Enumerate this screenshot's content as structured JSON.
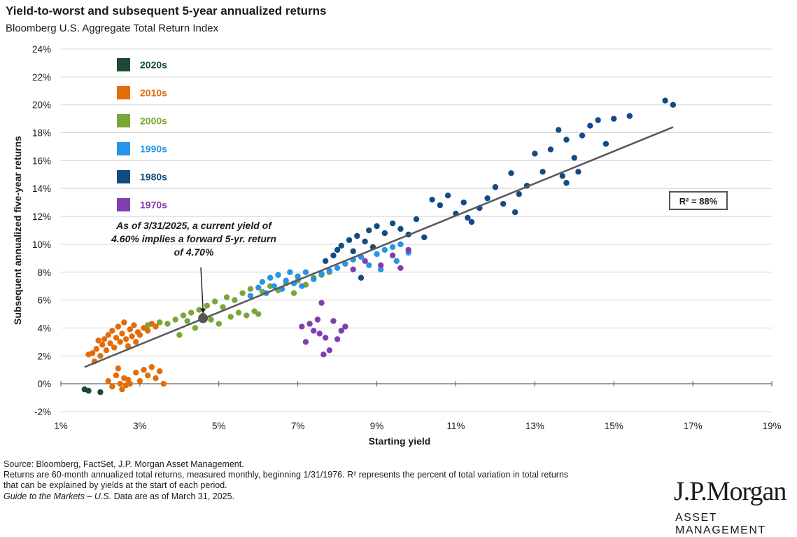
{
  "chart_data": {
    "type": "scatter",
    "title": "Yield-to-worst and subsequent 5-year annualized returns",
    "subtitle": "Bloomberg U.S. Aggregate Total Return Index",
    "xlabel": "Starting yield",
    "ylabel": "Subsequent annualized five-year returns",
    "xlim": [
      1,
      19
    ],
    "ylim": [
      -2,
      24
    ],
    "x_ticks": [
      "1%",
      "3%",
      "5%",
      "7%",
      "9%",
      "11%",
      "13%",
      "15%",
      "17%",
      "19%"
    ],
    "y_ticks": [
      "-2%",
      "0%",
      "2%",
      "4%",
      "6%",
      "8%",
      "10%",
      "12%",
      "14%",
      "16%",
      "18%",
      "20%",
      "22%",
      "24%"
    ],
    "grid": "horizontal",
    "legend_position": "top-left",
    "trendline": {
      "x": [
        1.6,
        16.5
      ],
      "y": [
        1.2,
        18.4
      ]
    },
    "r_squared_label": "R² = 88%",
    "annotation": {
      "lines": [
        "As of 3/31/2025, a current yield of",
        "4.60% implies a forward 5-yr. return",
        "of 4.70%"
      ],
      "point": {
        "x": 4.6,
        "y": 4.7
      }
    },
    "series": [
      {
        "name": "2020s",
        "color": "#1d4a33",
        "points": [
          [
            1.6,
            -0.4
          ],
          [
            1.7,
            -0.5
          ],
          [
            2.0,
            -0.6
          ]
        ]
      },
      {
        "name": "2010s",
        "color": "#e36c0a",
        "points": [
          [
            1.7,
            2.1
          ],
          [
            1.8,
            2.2
          ],
          [
            1.85,
            1.6
          ],
          [
            1.9,
            2.5
          ],
          [
            1.95,
            3.1
          ],
          [
            2.0,
            2.0
          ],
          [
            2.05,
            2.8
          ],
          [
            2.1,
            3.2
          ],
          [
            2.15,
            2.4
          ],
          [
            2.2,
            3.5
          ],
          [
            2.25,
            2.9
          ],
          [
            2.3,
            3.8
          ],
          [
            2.35,
            2.6
          ],
          [
            2.4,
            3.3
          ],
          [
            2.45,
            4.1
          ],
          [
            2.5,
            3.0
          ],
          [
            2.55,
            3.6
          ],
          [
            2.6,
            4.4
          ],
          [
            2.65,
            3.2
          ],
          [
            2.7,
            2.7
          ],
          [
            2.75,
            3.9
          ],
          [
            2.8,
            3.4
          ],
          [
            2.85,
            4.2
          ],
          [
            2.9,
            3.0
          ],
          [
            2.95,
            3.7
          ],
          [
            3.0,
            3.5
          ],
          [
            3.1,
            4.0
          ],
          [
            3.2,
            3.8
          ],
          [
            3.3,
            4.3
          ],
          [
            3.4,
            4.1
          ],
          [
            3.5,
            4.4
          ],
          [
            2.2,
            0.2
          ],
          [
            2.3,
            -0.2
          ],
          [
            2.4,
            0.6
          ],
          [
            2.45,
            1.1
          ],
          [
            2.5,
            0.0
          ],
          [
            2.55,
            -0.4
          ],
          [
            2.6,
            0.4
          ],
          [
            2.65,
            -0.1
          ],
          [
            2.7,
            0.3
          ],
          [
            2.75,
            0.0
          ],
          [
            2.9,
            0.8
          ],
          [
            3.0,
            0.2
          ],
          [
            3.1,
            1.0
          ],
          [
            3.2,
            0.6
          ],
          [
            3.3,
            1.2
          ],
          [
            3.4,
            0.4
          ],
          [
            3.5,
            0.9
          ],
          [
            3.6,
            0.0
          ]
        ]
      },
      {
        "name": "2000s",
        "color": "#7aa638",
        "points": [
          [
            3.2,
            4.2
          ],
          [
            3.5,
            4.4
          ],
          [
            3.7,
            4.3
          ],
          [
            3.9,
            4.6
          ],
          [
            4.0,
            3.5
          ],
          [
            4.1,
            4.9
          ],
          [
            4.2,
            4.5
          ],
          [
            4.3,
            5.1
          ],
          [
            4.4,
            4.0
          ],
          [
            4.5,
            5.3
          ],
          [
            4.6,
            4.9
          ],
          [
            4.7,
            5.6
          ],
          [
            4.8,
            4.6
          ],
          [
            4.9,
            5.9
          ],
          [
            5.0,
            4.3
          ],
          [
            5.1,
            5.5
          ],
          [
            5.2,
            6.2
          ],
          [
            5.3,
            4.8
          ],
          [
            5.4,
            6.0
          ],
          [
            5.5,
            5.1
          ],
          [
            5.6,
            6.5
          ],
          [
            5.7,
            4.9
          ],
          [
            5.8,
            6.8
          ],
          [
            5.9,
            5.2
          ],
          [
            6.0,
            5.0
          ],
          [
            6.1,
            6.6
          ],
          [
            6.3,
            7.0
          ],
          [
            6.5,
            6.7
          ],
          [
            6.7,
            7.2
          ],
          [
            6.9,
            6.5
          ],
          [
            7.0,
            7.4
          ],
          [
            7.2,
            7.1
          ],
          [
            7.4,
            7.6
          ],
          [
            7.6,
            7.8
          ],
          [
            7.8,
            8.0
          ]
        ]
      },
      {
        "name": "1990s",
        "color": "#2694e8",
        "points": [
          [
            5.8,
            6.3
          ],
          [
            6.0,
            6.9
          ],
          [
            6.1,
            7.3
          ],
          [
            6.2,
            6.5
          ],
          [
            6.3,
            7.6
          ],
          [
            6.4,
            7.0
          ],
          [
            6.5,
            7.8
          ],
          [
            6.6,
            6.8
          ],
          [
            6.7,
            7.4
          ],
          [
            6.8,
            8.0
          ],
          [
            6.9,
            7.2
          ],
          [
            7.0,
            7.7
          ],
          [
            7.1,
            7.0
          ],
          [
            7.2,
            8.0
          ],
          [
            7.4,
            7.5
          ],
          [
            7.6,
            7.9
          ],
          [
            7.8,
            8.1
          ],
          [
            8.0,
            8.3
          ],
          [
            8.2,
            8.6
          ],
          [
            8.4,
            8.9
          ],
          [
            8.6,
            9.1
          ],
          [
            8.8,
            8.5
          ],
          [
            9.0,
            9.3
          ],
          [
            9.1,
            8.2
          ],
          [
            9.2,
            9.6
          ],
          [
            9.4,
            9.8
          ],
          [
            9.5,
            8.8
          ],
          [
            9.6,
            10.0
          ],
          [
            9.8,
            9.4
          ]
        ]
      },
      {
        "name": "1980s",
        "color": "#134b85",
        "points": [
          [
            7.7,
            8.8
          ],
          [
            7.9,
            9.2
          ],
          [
            8.0,
            9.6
          ],
          [
            8.1,
            9.9
          ],
          [
            8.3,
            10.3
          ],
          [
            8.4,
            9.5
          ],
          [
            8.5,
            10.6
          ],
          [
            8.6,
            7.6
          ],
          [
            8.7,
            10.2
          ],
          [
            8.8,
            11.0
          ],
          [
            8.9,
            9.8
          ],
          [
            9.0,
            11.3
          ],
          [
            9.2,
            10.8
          ],
          [
            9.4,
            11.5
          ],
          [
            9.6,
            11.1
          ],
          [
            9.8,
            10.7
          ],
          [
            10.0,
            11.8
          ],
          [
            10.2,
            10.5
          ],
          [
            10.4,
            13.2
          ],
          [
            10.6,
            12.8
          ],
          [
            10.8,
            13.5
          ],
          [
            11.0,
            12.2
          ],
          [
            11.2,
            13.0
          ],
          [
            11.4,
            11.6
          ],
          [
            11.6,
            12.6
          ],
          [
            11.8,
            13.3
          ],
          [
            12.0,
            14.1
          ],
          [
            12.2,
            12.9
          ],
          [
            12.4,
            15.1
          ],
          [
            12.6,
            13.6
          ],
          [
            12.8,
            14.2
          ],
          [
            13.0,
            16.5
          ],
          [
            13.2,
            15.2
          ],
          [
            13.4,
            16.8
          ],
          [
            13.6,
            18.2
          ],
          [
            13.8,
            17.5
          ],
          [
            14.0,
            16.2
          ],
          [
            14.2,
            17.8
          ],
          [
            14.4,
            18.5
          ],
          [
            14.6,
            18.9
          ],
          [
            14.8,
            17.2
          ],
          [
            15.0,
            19.0
          ],
          [
            15.4,
            19.2
          ],
          [
            16.3,
            20.3
          ],
          [
            16.5,
            20.0
          ],
          [
            13.7,
            14.9
          ],
          [
            13.8,
            14.4
          ],
          [
            14.1,
            15.2
          ],
          [
            12.5,
            12.3
          ],
          [
            11.3,
            11.9
          ]
        ]
      },
      {
        "name": "1970s",
        "color": "#7f3fb0",
        "points": [
          [
            7.1,
            4.1
          ],
          [
            7.2,
            3.0
          ],
          [
            7.3,
            4.3
          ],
          [
            7.4,
            3.8
          ],
          [
            7.5,
            4.6
          ],
          [
            7.55,
            3.6
          ],
          [
            7.6,
            5.8
          ],
          [
            7.65,
            2.1
          ],
          [
            7.7,
            3.3
          ],
          [
            7.8,
            2.4
          ],
          [
            7.9,
            4.5
          ],
          [
            8.0,
            3.2
          ],
          [
            8.1,
            3.8
          ],
          [
            8.2,
            4.1
          ],
          [
            8.4,
            8.2
          ],
          [
            8.7,
            8.8
          ],
          [
            9.1,
            8.5
          ],
          [
            9.4,
            9.2
          ],
          [
            9.6,
            8.3
          ],
          [
            9.8,
            9.6
          ]
        ]
      }
    ]
  },
  "footer": {
    "line1": "Source: Bloomberg, FactSet, J.P. Morgan Asset Management.",
    "line2": "Returns are 60-month annualized total returns, measured monthly, beginning 1/31/1976. R² represents the percent of total variation in total returns",
    "line3": "that can be explained by yields at the start of each period.",
    "line4_italic": "Guide to the Markets – U.S.",
    "line4_rest": " Data are as of March 31, 2025."
  },
  "logo": {
    "name": "J.P.Morgan",
    "sub": "ASSET MANAGEMENT"
  }
}
